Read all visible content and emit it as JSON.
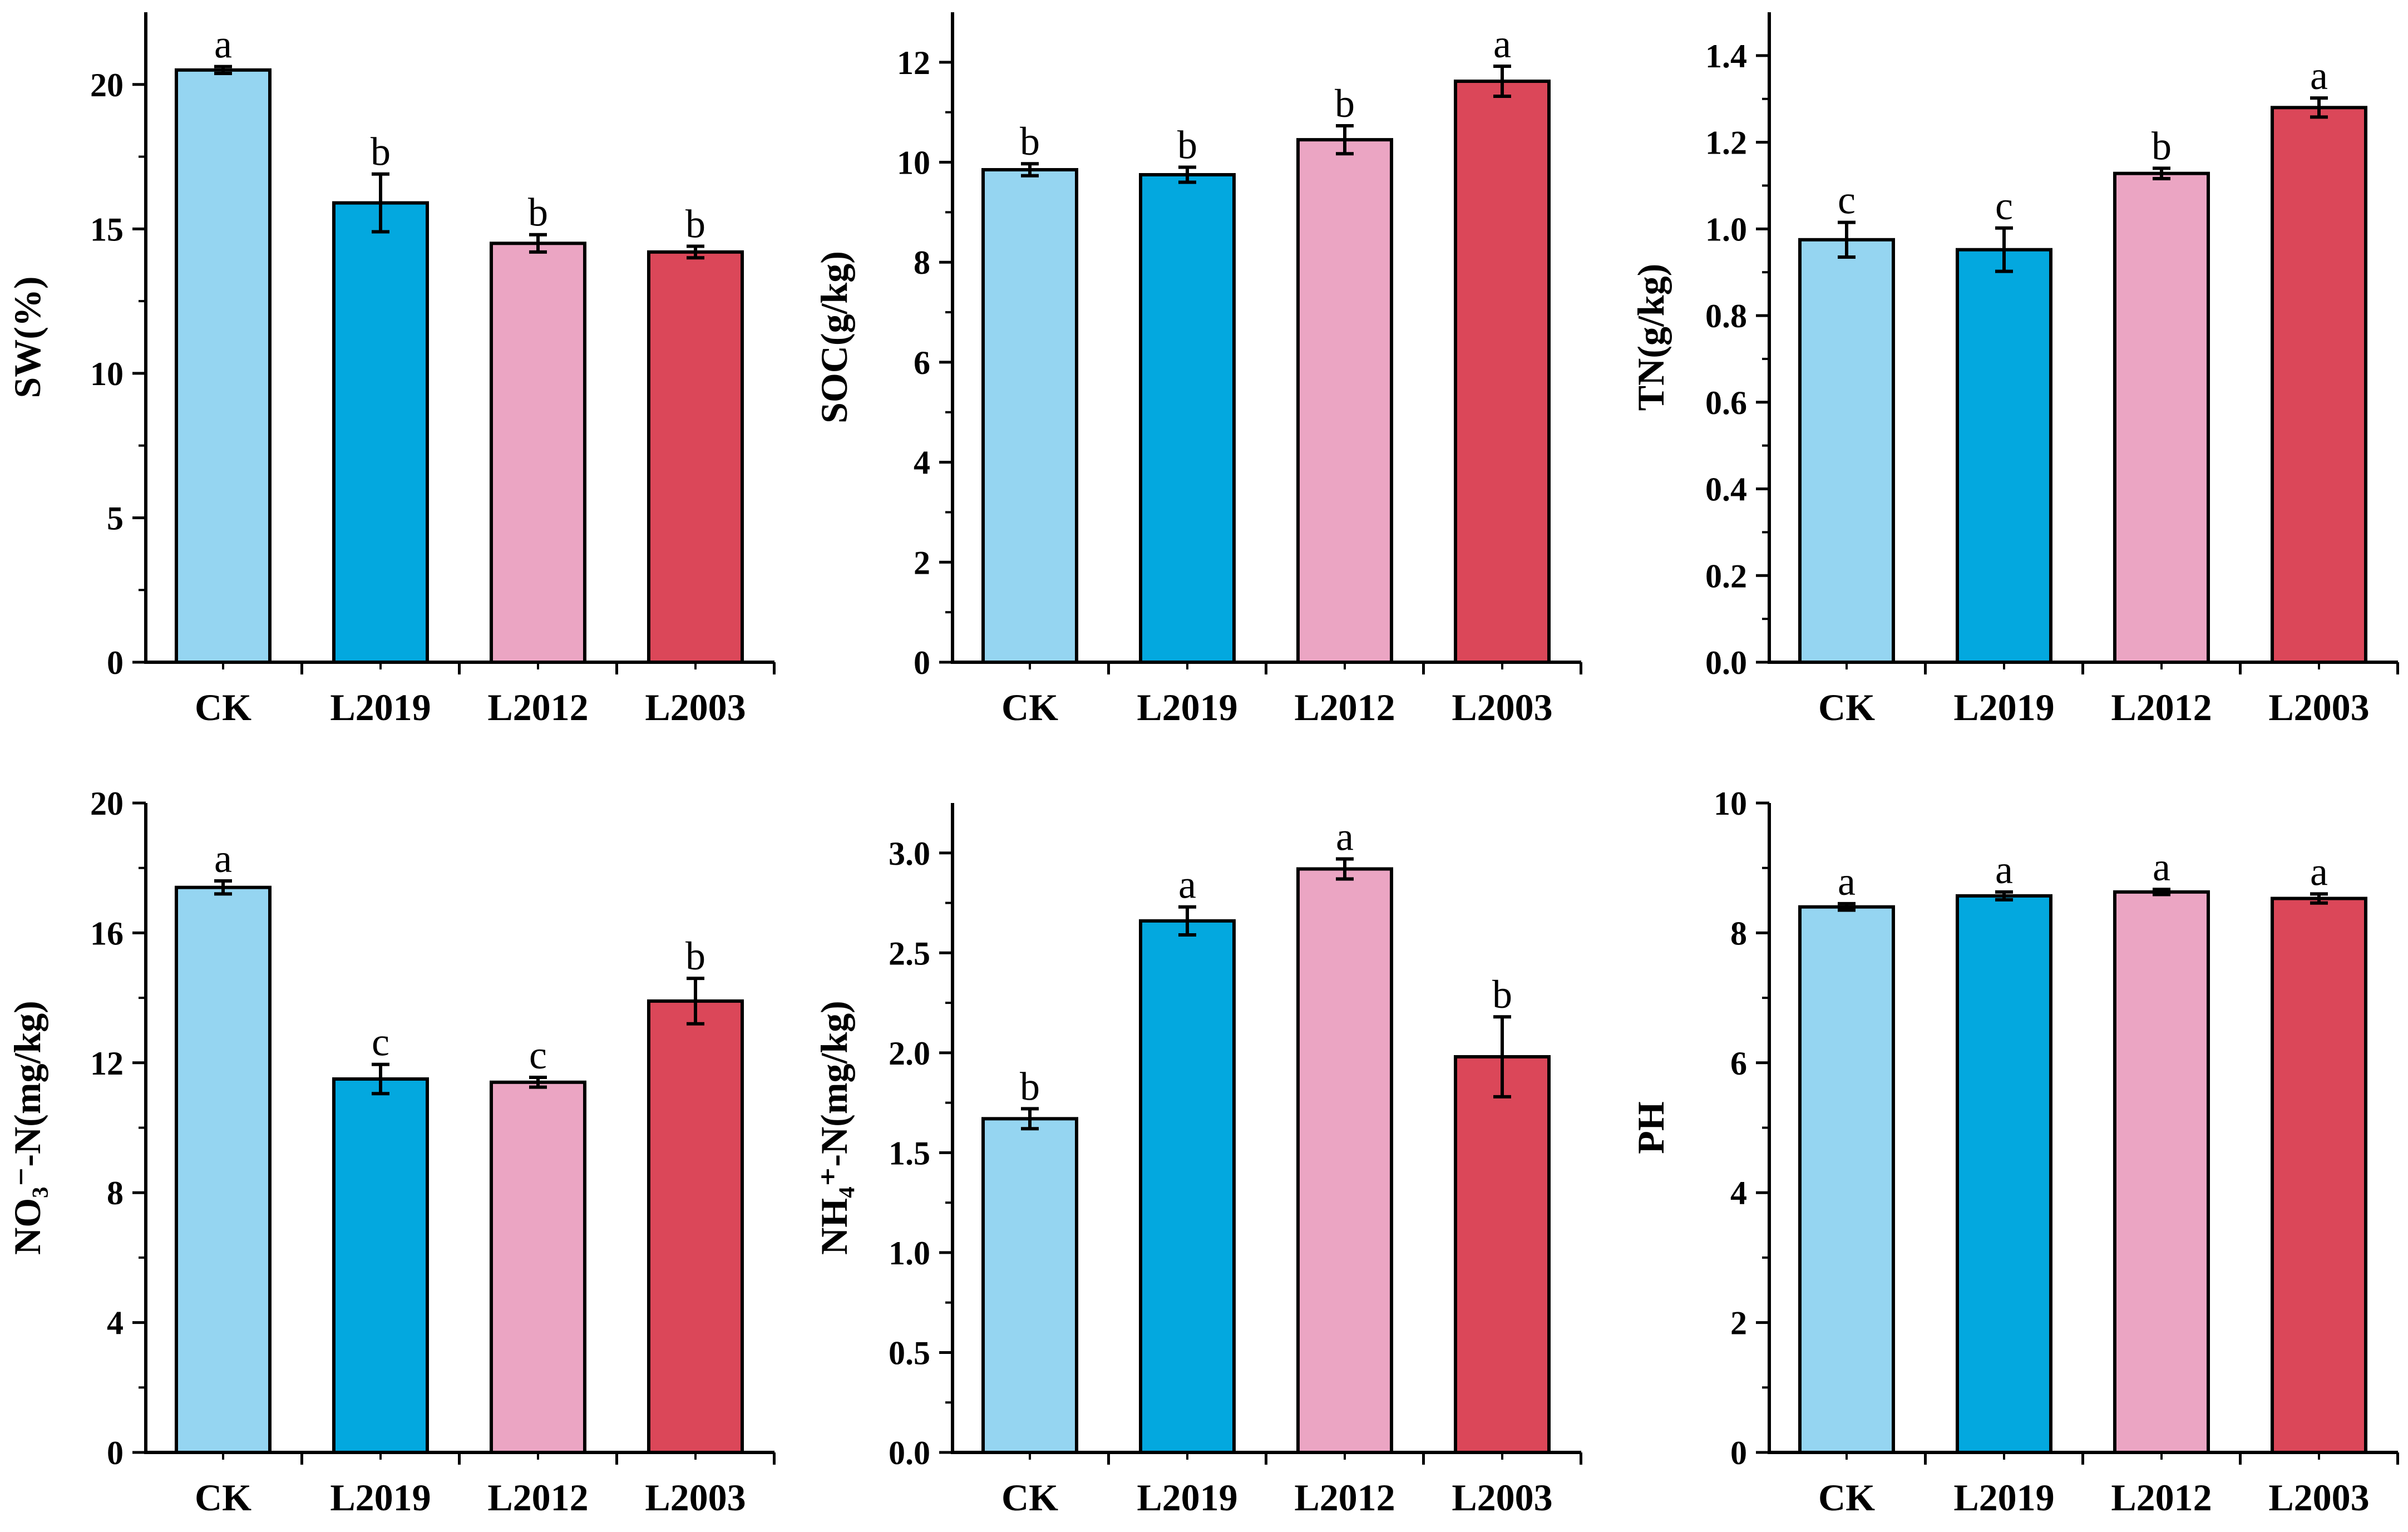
{
  "colors": {
    "CK": "#95d5f1",
    "L2019": "#03a8df",
    "L2012": "#eba5c3",
    "L2003": "#db4759",
    "axis": "#000000"
  },
  "chart_data": [
    {
      "type": "bar",
      "ylabel": "SW(%)",
      "categories": [
        "CK",
        "L2019",
        "L2012",
        "L2003"
      ],
      "values": [
        20.5,
        15.9,
        14.5,
        14.2
      ],
      "errors": [
        0.12,
        1.0,
        0.3,
        0.2
      ],
      "letters": [
        "a",
        "b",
        "b",
        "b"
      ],
      "ylim": [
        0,
        22.5
      ],
      "yticks": [
        0,
        5,
        10,
        15,
        20
      ],
      "ytick_labels": [
        "0",
        "5",
        "10",
        "15",
        "20"
      ]
    },
    {
      "type": "bar",
      "ylabel": "SOC(g/kg)",
      "categories": [
        "CK",
        "L2019",
        "L2012",
        "L2003"
      ],
      "values": [
        9.85,
        9.75,
        10.45,
        11.62
      ],
      "errors": [
        0.12,
        0.15,
        0.28,
        0.3
      ],
      "letters": [
        "b",
        "b",
        "b",
        "a"
      ],
      "ylim": [
        0,
        13
      ],
      "yticks": [
        0,
        2,
        4,
        6,
        8,
        10,
        12
      ],
      "ytick_labels": [
        "0",
        "2",
        "4",
        "6",
        "8",
        "10",
        "12"
      ]
    },
    {
      "type": "bar",
      "ylabel": "TN(g/kg)",
      "categories": [
        "CK",
        "L2019",
        "L2012",
        "L2003"
      ],
      "values": [
        0.975,
        0.952,
        1.128,
        1.28
      ],
      "errors": [
        0.04,
        0.05,
        0.012,
        0.022
      ],
      "letters": [
        "c",
        "c",
        "b",
        "a"
      ],
      "ylim": [
        0,
        1.5
      ],
      "yticks": [
        0,
        0.2,
        0.4,
        0.6,
        0.8,
        1.0,
        1.2,
        1.4
      ],
      "ytick_labels": [
        "0.0",
        "0.2",
        "0.4",
        "0.6",
        "0.8",
        "1.0",
        "1.2",
        "1.4"
      ]
    },
    {
      "type": "bar",
      "ylabel": "NO₃⁻-N(mg/kg)",
      "categories": [
        "CK",
        "L2019",
        "L2012",
        "L2003"
      ],
      "values": [
        17.4,
        11.5,
        11.4,
        13.9
      ],
      "errors": [
        0.2,
        0.45,
        0.15,
        0.7
      ],
      "letters": [
        "a",
        "c",
        "c",
        "b"
      ],
      "ylim": [
        0,
        20
      ],
      "yticks": [
        0,
        4,
        8,
        12,
        16,
        20
      ],
      "ytick_labels": [
        "0",
        "4",
        "8",
        "12",
        "16",
        "20"
      ]
    },
    {
      "type": "bar",
      "ylabel": "NH₄⁺-N(mg/kg)",
      "categories": [
        "CK",
        "L2019",
        "L2012",
        "L2003"
      ],
      "values": [
        1.67,
        2.66,
        2.92,
        1.98
      ],
      "errors": [
        0.05,
        0.07,
        0.05,
        0.2
      ],
      "letters": [
        "b",
        "a",
        "a",
        "b"
      ],
      "ylim": [
        0,
        3.25
      ],
      "yticks": [
        0,
        0.5,
        1.0,
        1.5,
        2.0,
        2.5,
        3.0
      ],
      "ytick_labels": [
        "0.0",
        "0.5",
        "1.0",
        "1.5",
        "2.0",
        "2.5",
        "3.0"
      ]
    },
    {
      "type": "bar",
      "ylabel": "PH",
      "categories": [
        "CK",
        "L2019",
        "L2012",
        "L2003"
      ],
      "values": [
        8.4,
        8.57,
        8.63,
        8.53
      ],
      "errors": [
        0.05,
        0.06,
        0.04,
        0.07
      ],
      "letters": [
        "a",
        "a",
        "a",
        "a"
      ],
      "ylim": [
        0,
        10
      ],
      "yticks": [
        0,
        2,
        4,
        6,
        8,
        10
      ],
      "ytick_labels": [
        "0",
        "2",
        "4",
        "6",
        "8",
        "10"
      ]
    }
  ]
}
